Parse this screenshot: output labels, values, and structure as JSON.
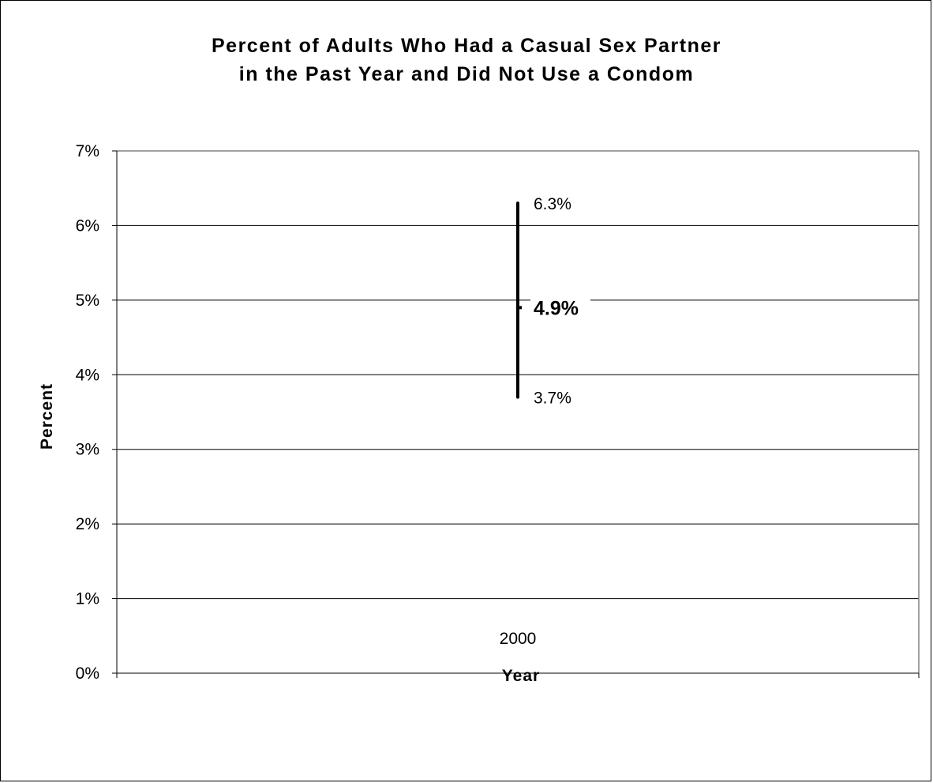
{
  "chart_data": {
    "type": "scatter",
    "title_lines": [
      "Percent of Adults Who Had a Casual Sex Partner",
      "in the Past Year and Did Not Use a Condom"
    ],
    "xlabel": "Year",
    "ylabel": "Percent",
    "categories": [
      "2000"
    ],
    "ylim": [
      0,
      7
    ],
    "yticks": [
      0,
      1,
      2,
      3,
      4,
      5,
      6,
      7
    ],
    "ytick_labels": [
      "0%",
      "1%",
      "2%",
      "3%",
      "4%",
      "5%",
      "6%",
      "7%"
    ],
    "grid": true,
    "series": [
      {
        "points": [
          {
            "x": "2000",
            "value": 4.9,
            "lower": 3.7,
            "upper": 6.3,
            "value_label": "4.9%",
            "lower_label": "3.7%",
            "upper_label": "6.3%"
          }
        ]
      }
    ],
    "colors": {
      "plot_line": "#000000",
      "axis": "#808080",
      "grid": "#000000"
    }
  }
}
